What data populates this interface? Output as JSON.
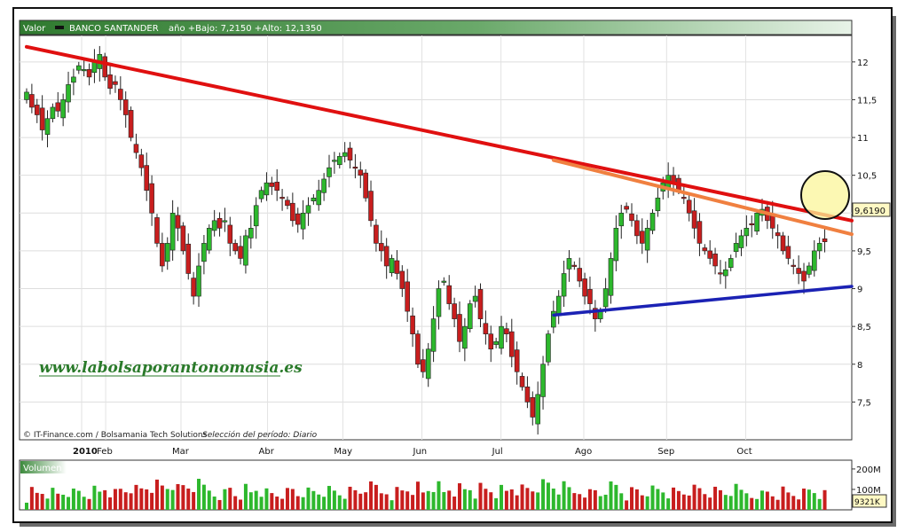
{
  "header": {
    "valor_label": "Valor",
    "ticker": "BANCO SANTANDER",
    "range_text": "año +Bajo: 7,2150 +Alto: 12,1350"
  },
  "footer": {
    "credits": "© IT-Finance.com / Bolsamania Tech Solutions",
    "period": "Selección del período: Diario"
  },
  "watermark": "www.labolsaporantonomasia.es",
  "volume_label": "Volumen",
  "colors": {
    "up": "#2db82d",
    "down": "#c81e1e",
    "resistance": "#e01010",
    "resistance2": "#f08040",
    "support": "#1b22b4",
    "header_green": "#3d8a3d",
    "highlight": "#fbf59a"
  },
  "chart_data": [
    {
      "type": "candlestick",
      "title": "BANCO SANTANDER",
      "ylim": [
        7.0,
        12.35
      ],
      "y_ticks": [
        "12",
        "11,5",
        "11",
        "10,5",
        "10",
        "9,5",
        "9",
        "8,5",
        "8",
        "7,5"
      ],
      "y_tick_values": [
        12,
        11.5,
        11,
        10.5,
        10,
        9.5,
        9,
        8.5,
        8,
        7.5
      ],
      "x_ticks": [
        "2010",
        "Feb",
        "Mar",
        "Abr",
        "May",
        "Jun",
        "Jul",
        "Ago",
        "Sep",
        "Oct"
      ],
      "x_tick_days": [
        0,
        21,
        41,
        64,
        84,
        105,
        126,
        148,
        170,
        191
      ],
      "last_price": "9,6190",
      "low": 7.215,
      "high": 12.135,
      "close_series": [
        11.6,
        11.4,
        11.3,
        11.1,
        11.25,
        11.4,
        11.35,
        11.5,
        11.7,
        11.8,
        11.95,
        11.9,
        11.8,
        12.0,
        12.1,
        11.8,
        11.65,
        11.7,
        11.5,
        11.3,
        11.0,
        10.8,
        10.6,
        10.3,
        10.0,
        9.6,
        9.3,
        9.6,
        10.0,
        9.8,
        9.5,
        9.2,
        8.9,
        9.3,
        9.6,
        9.8,
        9.9,
        9.8,
        9.9,
        9.6,
        9.5,
        9.4,
        9.7,
        9.8,
        10.1,
        10.3,
        10.4,
        10.35,
        10.3,
        10.2,
        10.1,
        9.9,
        9.85,
        10.0,
        10.1,
        10.2,
        10.3,
        10.45,
        10.6,
        10.7,
        10.75,
        10.8,
        10.7,
        10.6,
        10.5,
        10.2,
        9.9,
        9.6,
        9.5,
        9.3,
        9.4,
        9.2,
        9.0,
        8.7,
        8.4,
        8.0,
        7.9,
        8.2,
        8.6,
        9.0,
        9.1,
        8.8,
        8.6,
        8.3,
        8.5,
        8.8,
        8.9,
        8.6,
        8.4,
        8.2,
        8.3,
        8.5,
        8.4,
        8.1,
        7.9,
        7.7,
        7.5,
        7.3,
        7.6,
        8.0,
        8.4,
        8.7,
        8.9,
        9.2,
        9.4,
        9.3,
        9.1,
        8.9,
        8.8,
        8.6,
        8.7,
        9.0,
        9.4,
        9.8,
        10.0,
        10.05,
        9.9,
        9.7,
        9.6,
        9.8,
        10.0,
        10.2,
        10.4,
        10.5,
        10.4,
        10.3,
        10.2,
        10.0,
        9.8,
        9.6,
        9.5,
        9.4,
        9.3,
        9.2,
        9.25,
        9.4,
        9.6,
        9.7,
        9.8,
        9.85,
        10.0,
        10.05,
        9.9,
        9.8,
        9.7,
        9.5,
        9.4,
        9.3,
        9.2,
        9.1,
        9.3,
        9.5,
        9.6,
        9.62
      ],
      "volume": {
        "y_ticks": [
          "200M",
          "100M"
        ],
        "y_tick_values": [
          200,
          100
        ],
        "ylim": [
          0,
          230
        ],
        "last_value": "9321K"
      },
      "trendlines": [
        {
          "name": "resistance-main",
          "from": [
            0,
            12.2
          ],
          "to": [
            218,
            9.9
          ]
        },
        {
          "name": "resistance-secondary",
          "from": [
            140,
            10.7
          ],
          "to": [
            218,
            9.72
          ]
        },
        {
          "name": "support",
          "from": [
            140,
            8.65
          ],
          "to": [
            218,
            9.03
          ]
        }
      ]
    }
  ]
}
